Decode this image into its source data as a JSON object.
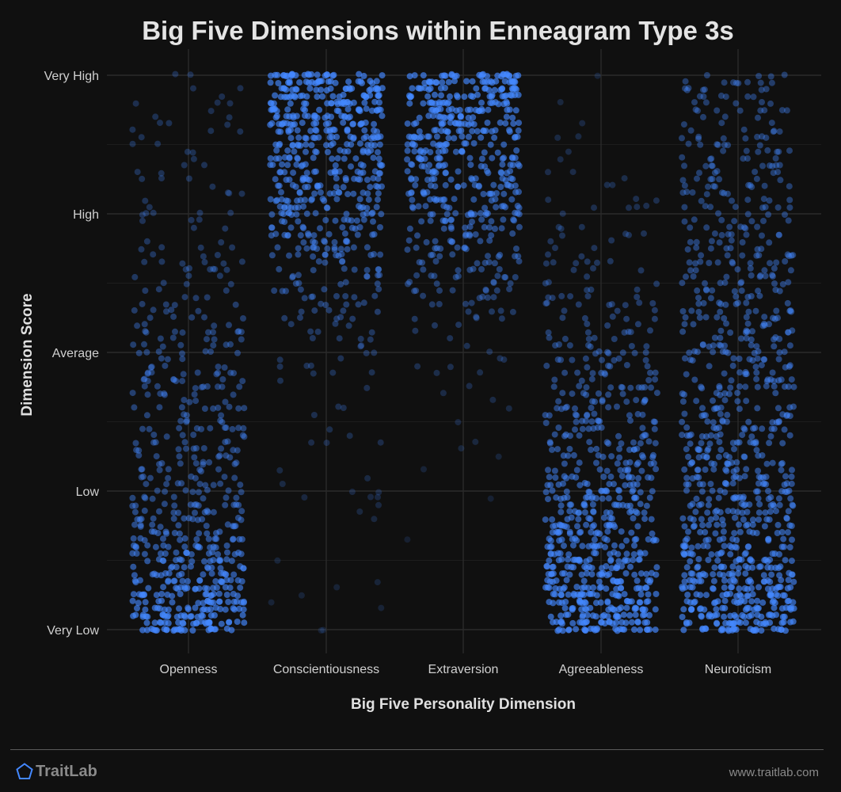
{
  "chart_data": {
    "type": "scatter",
    "title": "Big Five Dimensions within Enneagram Type 3s",
    "xlabel": "Big Five Personality Dimension",
    "ylabel": "Dimension Score",
    "categories": [
      "Openness",
      "Conscientiousness",
      "Extraversion",
      "Agreeableness",
      "Neuroticism"
    ],
    "y_levels": [
      "Very Low",
      "Low",
      "Average",
      "High",
      "Very High"
    ],
    "ylim": [
      0,
      100
    ],
    "grid": true,
    "point_color": "#4488ff",
    "density_note_levels": [
      0,
      25,
      50,
      75,
      100
    ],
    "series": [
      {
        "category": "Openness",
        "density_by_level": [
          1.0,
          0.55,
          0.5,
          0.3,
          0.25
        ]
      },
      {
        "category": "Conscientiousness",
        "density_by_level": [
          0.05,
          0.15,
          0.3,
          0.75,
          1.0
        ]
      },
      {
        "category": "Extraversion",
        "density_by_level": [
          0.0,
          0.05,
          0.25,
          0.7,
          1.0
        ]
      },
      {
        "category": "Agreeableness",
        "density_by_level": [
          1.0,
          0.75,
          0.5,
          0.25,
          0.1
        ]
      },
      {
        "category": "Neuroticism",
        "density_by_level": [
          1.0,
          0.7,
          0.6,
          0.5,
          0.45
        ]
      }
    ]
  },
  "footer": {
    "brand": "TraitLab",
    "url": "www.traitlab.com"
  }
}
